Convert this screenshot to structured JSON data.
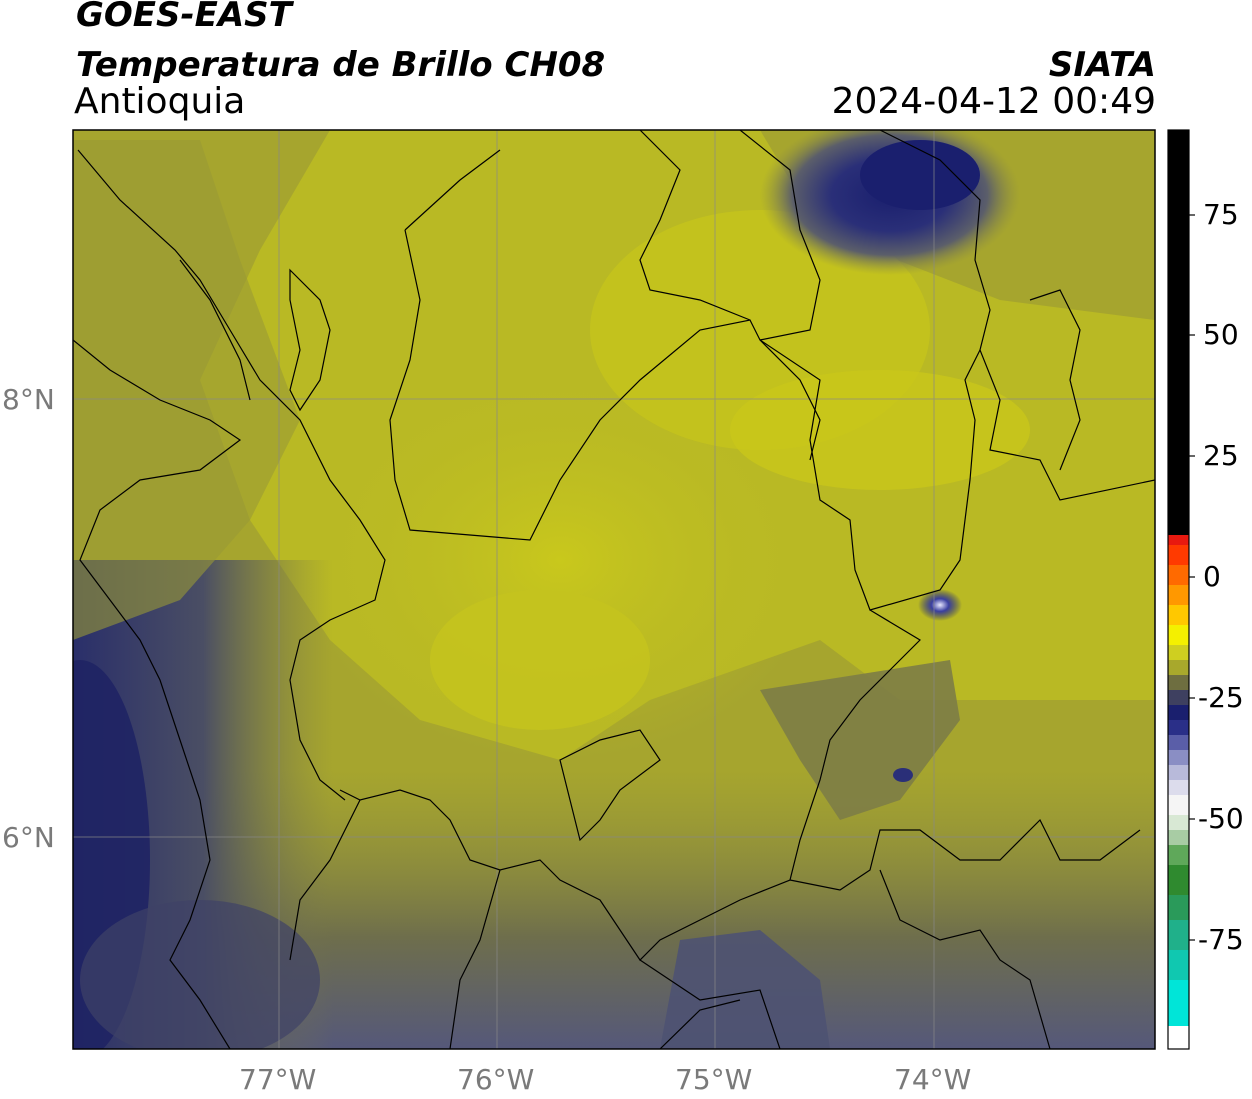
{
  "header": {
    "satellite": "GOES-EAST",
    "product": "Temperatura de Brillo CH08",
    "region": "Antioquia",
    "agency": "SIATA",
    "timestamp": "2024-04-12 00:49"
  },
  "map": {
    "latitude_labels": [
      "8°N",
      "6°N"
    ],
    "longitude_labels": [
      "77°W",
      "76°W",
      "75°W",
      "74°W"
    ],
    "grid": true
  },
  "colorbar": {
    "tick_labels": [
      "75",
      "50",
      "25",
      "0",
      "-25",
      "-50",
      "-75"
    ],
    "colors": {
      "black": "#000000",
      "red": "#e8190f",
      "orange": "#ff9800",
      "yellow": "#f4f000",
      "olive": "#a8a82c",
      "navy": "#1a1f6e",
      "white": "#f5f5f5",
      "green": "#2f8a2f",
      "cyan": "#00e5d8"
    }
  }
}
